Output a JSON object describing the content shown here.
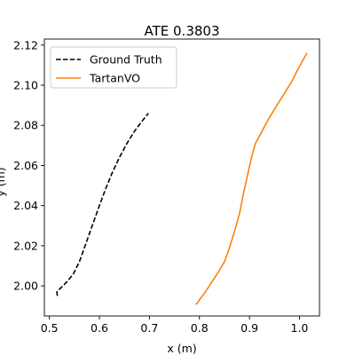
{
  "chart_data": {
    "type": "line",
    "title": "ATE 0.3803",
    "xlabel": "x (m)",
    "ylabel": "y (m)",
    "xlim": [
      0.49,
      1.04
    ],
    "ylim": [
      1.985,
      2.123
    ],
    "xticks": [
      0.5,
      0.6,
      0.7,
      0.8,
      0.9,
      1.0
    ],
    "xtick_labels": [
      "0.5",
      "0.6",
      "0.7",
      "0.8",
      "0.9",
      "1.0"
    ],
    "yticks": [
      2.0,
      2.02,
      2.04,
      2.06,
      2.08,
      2.1,
      2.12
    ],
    "ytick_labels": [
      "2.00",
      "2.02",
      "2.04",
      "2.06",
      "2.08",
      "2.10",
      "2.12"
    ],
    "grid": false,
    "legend_position": "upper left",
    "series": [
      {
        "name": "Ground Truth",
        "color": "#000000",
        "linestyle": "dashed",
        "points": [
          [
            0.516,
            1.995
          ],
          [
            0.515,
            1.997
          ],
          [
            0.523,
            1.999
          ],
          [
            0.535,
            2.002
          ],
          [
            0.548,
            2.006
          ],
          [
            0.56,
            2.012
          ],
          [
            0.57,
            2.019
          ],
          [
            0.58,
            2.026
          ],
          [
            0.59,
            2.033
          ],
          [
            0.6,
            2.04
          ],
          [
            0.612,
            2.048
          ],
          [
            0.625,
            2.056
          ],
          [
            0.64,
            2.064
          ],
          [
            0.655,
            2.071
          ],
          [
            0.67,
            2.077
          ],
          [
            0.685,
            2.082
          ],
          [
            0.698,
            2.086
          ]
        ]
      },
      {
        "name": "TartanVO",
        "color": "#ff7f0e",
        "linestyle": "solid",
        "points": [
          [
            0.792,
            1.991
          ],
          [
            0.795,
            1.991
          ],
          [
            0.8,
            1.993
          ],
          [
            0.812,
            1.997
          ],
          [
            0.825,
            2.002
          ],
          [
            0.838,
            2.007
          ],
          [
            0.85,
            2.012
          ],
          [
            0.86,
            2.019
          ],
          [
            0.87,
            2.027
          ],
          [
            0.88,
            2.036
          ],
          [
            0.888,
            2.046
          ],
          [
            0.896,
            2.055
          ],
          [
            0.904,
            2.064
          ],
          [
            0.912,
            2.071
          ],
          [
            0.925,
            2.077
          ],
          [
            0.94,
            2.084
          ],
          [
            0.955,
            2.09
          ],
          [
            0.97,
            2.096
          ],
          [
            0.985,
            2.102
          ],
          [
            0.997,
            2.108
          ],
          [
            1.008,
            2.113
          ],
          [
            1.015,
            2.116
          ]
        ]
      }
    ]
  }
}
